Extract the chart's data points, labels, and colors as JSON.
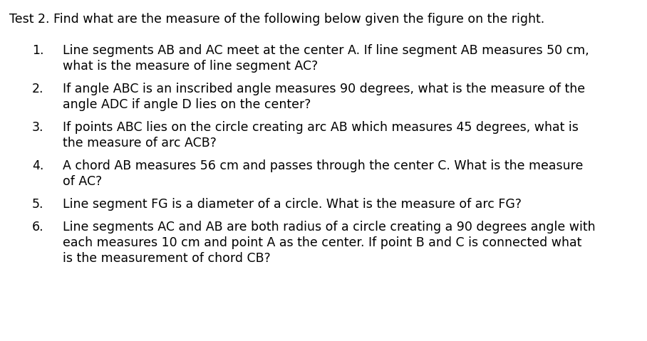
{
  "background_color": "#ffffff",
  "title": "Test 2. Find what are the measure of the following below given the figure on the right.",
  "font_size": 12.5,
  "font_family": "DejaVu Sans",
  "items": [
    {
      "number": "1.",
      "lines": [
        "Line segments AB and AC meet at the center A. If line segment AB measures 50 cm,",
        "what is the measure of line segment AC?"
      ]
    },
    {
      "number": "2.",
      "lines": [
        "If angle ABC is an inscribed angle measures 90 degrees, what is the measure of the",
        "angle ADC if angle D lies on the center?"
      ]
    },
    {
      "number": "3.",
      "lines": [
        "If points ABC lies on the circle creating arc AB which measures 45 degrees, what is",
        "the measure of arc ACB?"
      ]
    },
    {
      "number": "4.",
      "lines": [
        "A chord AB measures 56 cm and passes through the center C. What is the measure",
        "of AC?"
      ]
    },
    {
      "number": "5.",
      "lines": [
        "Line segment FG is a diameter of a circle. What is the measure of arc FG?"
      ]
    },
    {
      "number": "6.",
      "lines": [
        "Line segments AC and AB are both radius of a circle creating a 90 degrees angle with",
        "each measures 10 cm and point A as the center. If point B and C is connected what",
        "is the measurement of chord CB?"
      ]
    }
  ]
}
